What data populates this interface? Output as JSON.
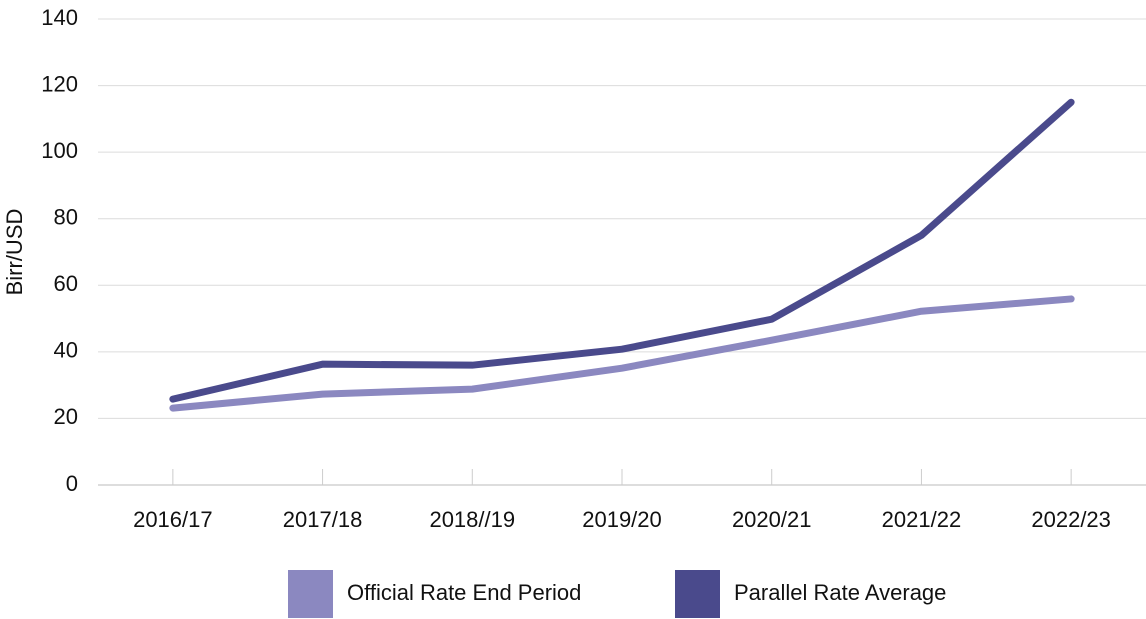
{
  "chart_data": {
    "type": "line",
    "y_label": "Birr/USD",
    "categories": [
      "2016/17",
      "2017/18",
      "2018//19",
      "2019/20",
      "2020/21",
      "2021/22",
      "2022/23"
    ],
    "series": [
      {
        "name": "Official Rate End Period",
        "color": "#8b88c0",
        "values": [
          23.1,
          27.3,
          28.8,
          35.1,
          43.5,
          52.2,
          55.9
        ]
      },
      {
        "name": "Parallel Rate Average",
        "color": "#4a4a8c",
        "values": [
          25.8,
          36.3,
          36.0,
          40.8,
          49.8,
          75.0,
          115.0
        ]
      }
    ],
    "ylim": [
      0,
      140
    ],
    "yticks": [
      0,
      20,
      40,
      60,
      80,
      100,
      120,
      140
    ],
    "grid": true,
    "legend": "bottom"
  }
}
